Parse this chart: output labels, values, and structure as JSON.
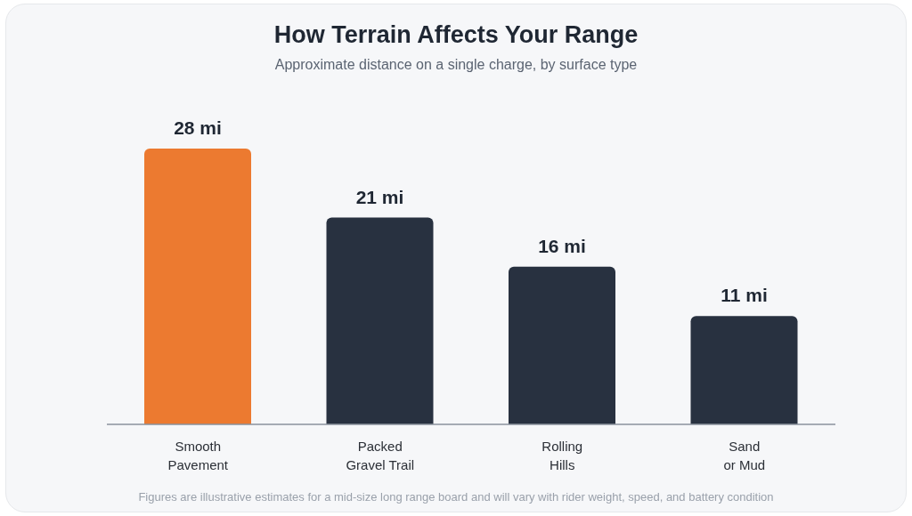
{
  "chart_data": {
    "type": "bar",
    "title": "How Terrain Affects Your Range",
    "subtitle": "Approximate distance on a single charge, by surface type",
    "categories": [
      "Smooth\nPavement",
      "Packed\nGravel Trail",
      "Rolling\nHills",
      "Sand\nor Mud"
    ],
    "values": [
      28,
      21,
      16,
      11
    ],
    "value_labels": [
      "28 mi",
      "21 mi",
      "16 mi",
      "11 mi"
    ],
    "colors": [
      "#ec7a30",
      "#283140",
      "#283140",
      "#283140"
    ],
    "annotations": [
      "Figures are illustrative estimates for a mid-size long range board and will vary with rider weight, speed, and battery condition"
    ],
    "grid": false,
    "legend": false
  }
}
